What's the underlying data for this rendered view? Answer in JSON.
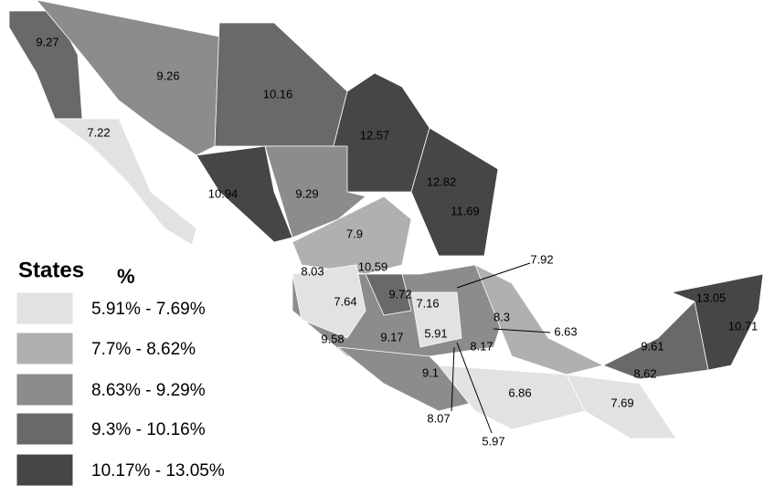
{
  "legend": {
    "title": "States",
    "unit": "%",
    "classes": [
      {
        "label": "5.91% - 7.69%",
        "color": "#e2e2e2"
      },
      {
        "label": "7.7% - 8.62%",
        "color": "#b0b0b0"
      },
      {
        "label": "8.63% - 9.29%",
        "color": "#8c8c8c"
      },
      {
        "label": "9.3% - 10.16%",
        "color": "#696969"
      },
      {
        "label": "10.17% - 13.05%",
        "color": "#464646"
      }
    ]
  },
  "labels": [
    "9.27",
    "9.26",
    "10.16",
    "12.57",
    "7.22",
    "12.82",
    "10.94",
    "9.29",
    "11.69",
    "7.9",
    "7.92",
    "8.03",
    "10.59",
    "9.72",
    "7.64",
    "7.16",
    "8.3",
    "6.63",
    "13.05",
    "10.71",
    "5.91",
    "8.17",
    "9.58",
    "9.17",
    "9.61",
    "8.62",
    "9.1",
    "6.86",
    "7.69",
    "8.07",
    "5.97"
  ]
}
